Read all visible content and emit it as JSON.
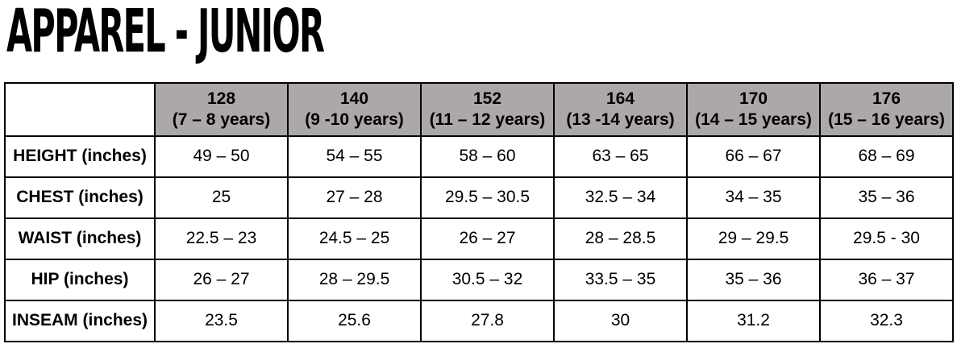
{
  "title": "APPAREL - JUNIOR",
  "colors": {
    "header_bg": "#aba8a7",
    "border": "#000000",
    "text": "#000000",
    "background": "#ffffff"
  },
  "table": {
    "columns": [
      {
        "size": "128",
        "age": "(7 – 8 years)"
      },
      {
        "size": "140",
        "age": "(9 -10 years)"
      },
      {
        "size": "152",
        "age": "(11 – 12 years)"
      },
      {
        "size": "164",
        "age": "(13 -14 years)"
      },
      {
        "size": "170",
        "age": "(14 – 15 years)"
      },
      {
        "size": "176",
        "age": "(15 – 16 years)"
      }
    ],
    "rows": [
      {
        "label": "HEIGHT (inches)",
        "values": [
          "49 – 50",
          "54 – 55",
          "58 – 60",
          "63 – 65",
          "66 – 67",
          "68 – 69"
        ]
      },
      {
        "label": "CHEST (inches)",
        "values": [
          "25",
          "27 – 28",
          "29.5 – 30.5",
          "32.5 – 34",
          "34 – 35",
          "35 – 36"
        ]
      },
      {
        "label": "WAIST (inches)",
        "values": [
          "22.5 – 23",
          "24.5 – 25",
          "26 – 27",
          "28 – 28.5",
          "29 – 29.5",
          "29.5 - 30"
        ]
      },
      {
        "label": "HIP (inches)",
        "values": [
          "26 – 27",
          "28 – 29.5",
          "30.5 – 32",
          "33.5 – 35",
          "35 – 36",
          "36 – 37"
        ]
      },
      {
        "label": "INSEAM (inches)",
        "values": [
          "23.5",
          "25.6",
          "27.8",
          "30",
          "31.2",
          "32.3"
        ]
      }
    ]
  }
}
